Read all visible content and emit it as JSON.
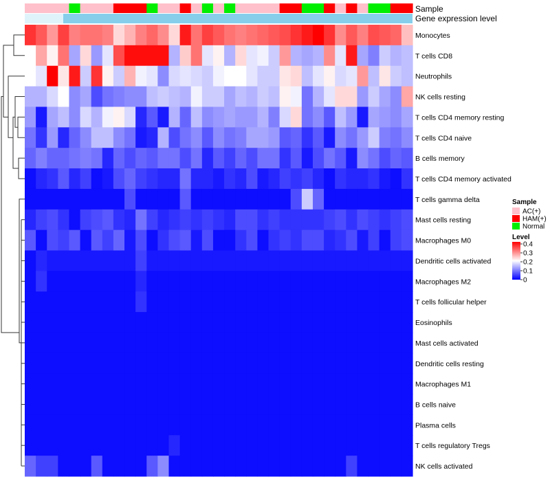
{
  "chart_data": {
    "type": "heatmap",
    "title": "",
    "rows": [
      "Monocytes",
      "T cells CD8",
      "Neutrophils",
      "NK cells resting",
      "T cells CD4 memory resting",
      "T cells CD4 naive",
      "B cells memory",
      "T cells CD4 memory activated",
      "T cells gamma delta",
      "Mast cells resting",
      "Macrophages M0",
      "Dendritic cells activated",
      "Macrophages M2",
      "T cells follicular helper",
      "Eosinophils",
      "Mast cells activated",
      "Dendritic cells resting",
      "Macrophages M1",
      "B cells naive",
      "Plasma cells",
      "T cells regulatory  Tregs",
      "NK cells activated"
    ],
    "sample_groups": [
      "AC",
      "AC",
      "AC",
      "AC",
      "N",
      "AC",
      "AC",
      "AC",
      "HAM",
      "HAM",
      "HAM",
      "N",
      "AC",
      "AC",
      "HAM",
      "AC",
      "N",
      "AC",
      "N",
      "AC",
      "AC",
      "AC",
      "AC",
      "HAM",
      "HAM",
      "N",
      "N",
      "HAM",
      "AC",
      "HAM",
      "AC",
      "N",
      "N",
      "HAM",
      "HAM"
    ],
    "gene_expression_track": "Gene expression level",
    "values": [
      [
        0.36,
        0.33,
        0.28,
        0.35,
        0.3,
        0.31,
        0.31,
        0.3,
        0.23,
        0.26,
        0.3,
        0.32,
        0.29,
        0.23,
        0.38,
        0.31,
        0.35,
        0.33,
        0.31,
        0.3,
        0.31,
        0.32,
        0.33,
        0.34,
        0.36,
        0.38,
        0.41,
        0.36,
        0.29,
        0.33,
        0.3,
        0.34,
        0.33,
        0.32,
        0.25
      ],
      [
        0.2,
        0.27,
        0.21,
        0.31,
        0.13,
        0.23,
        0.12,
        0.18,
        0.34,
        0.39,
        0.39,
        0.39,
        0.39,
        0.14,
        0.24,
        0.31,
        0.18,
        0.21,
        0.14,
        0.23,
        0.18,
        0.19,
        0.16,
        0.28,
        0.14,
        0.13,
        0.14,
        0.29,
        0.18,
        0.38,
        0.13,
        0.1,
        0.16,
        0.14,
        0.15
      ],
      [
        0.2,
        0.18,
        0.4,
        0.22,
        0.38,
        0.16,
        0.36,
        0.21,
        0.16,
        0.26,
        0.19,
        0.18,
        0.11,
        0.17,
        0.18,
        0.17,
        0.16,
        0.19,
        0.2,
        0.2,
        0.18,
        0.16,
        0.16,
        0.22,
        0.23,
        0.15,
        0.18,
        0.21,
        0.17,
        0.18,
        0.28,
        0.15,
        0.22,
        0.16,
        0.15
      ],
      [
        0.14,
        0.14,
        0.17,
        0.2,
        0.11,
        0.13,
        0.06,
        0.09,
        0.1,
        0.11,
        0.11,
        0.15,
        0.16,
        0.15,
        0.14,
        0.19,
        0.16,
        0.16,
        0.13,
        0.15,
        0.14,
        0.16,
        0.15,
        0.21,
        0.19,
        0.09,
        0.14,
        0.18,
        0.23,
        0.23,
        0.12,
        0.16,
        0.13,
        0.11,
        0.27
      ],
      [
        0.12,
        0.02,
        0.13,
        0.15,
        0.11,
        0.17,
        0.14,
        0.19,
        0.21,
        0.17,
        0.03,
        0.07,
        0.02,
        0.14,
        0.08,
        0.15,
        0.11,
        0.12,
        0.13,
        0.12,
        0.12,
        0.14,
        0.1,
        0.17,
        0.23,
        0.09,
        0.11,
        0.07,
        0.15,
        0.12,
        0.02,
        0.13,
        0.12,
        0.11,
        0.13
      ],
      [
        0.09,
        0.04,
        0.12,
        0.03,
        0.08,
        0.11,
        0.15,
        0.15,
        0.11,
        0.09,
        0.02,
        0.03,
        0.14,
        0.06,
        0.09,
        0.11,
        0.07,
        0.11,
        0.09,
        0.1,
        0.13,
        0.13,
        0.12,
        0.07,
        0.08,
        0.04,
        0.07,
        0.02,
        0.11,
        0.09,
        0.12,
        0.16,
        0.1,
        0.09,
        0.11
      ],
      [
        0.08,
        0.1,
        0.08,
        0.08,
        0.09,
        0.1,
        0.09,
        0.03,
        0.08,
        0.06,
        0.08,
        0.07,
        0.09,
        0.09,
        0.06,
        0.09,
        0.03,
        0.07,
        0.05,
        0.08,
        0.06,
        0.09,
        0.09,
        0.04,
        0.07,
        0.02,
        0.06,
        0.09,
        0.07,
        0.02,
        0.11,
        0.09,
        0.06,
        0.08,
        0.07
      ],
      [
        0.01,
        0.03,
        0.04,
        0.07,
        0.03,
        0.05,
        0.01,
        0.02,
        0.06,
        0.08,
        0.05,
        0.04,
        0.03,
        0.03,
        0.09,
        0.03,
        0.03,
        0.02,
        0.04,
        0.03,
        0.06,
        0.02,
        0.03,
        0.05,
        0.04,
        0.05,
        0.03,
        0.01,
        0.04,
        0.03,
        0.03,
        0.04,
        0.02,
        0.01,
        0.04
      ],
      [
        0.01,
        0.01,
        0.01,
        0.01,
        0.01,
        0.01,
        0.01,
        0.01,
        0.01,
        0.06,
        0.01,
        0.01,
        0.01,
        0.01,
        0.07,
        0.01,
        0.01,
        0.01,
        0.01,
        0.01,
        0.01,
        0.01,
        0.01,
        0.01,
        0.06,
        0.16,
        0.08,
        0.01,
        0.01,
        0.01,
        0.01,
        0.01,
        0.01,
        0.01,
        0.01
      ],
      [
        0.03,
        0.05,
        0.06,
        0.04,
        0.01,
        0.05,
        0.06,
        0.07,
        0.04,
        0.03,
        0.09,
        0.05,
        0.03,
        0.04,
        0.05,
        0.04,
        0.05,
        0.04,
        0.03,
        0.06,
        0.06,
        0.04,
        0.05,
        0.04,
        0.04,
        0.04,
        0.04,
        0.05,
        0.06,
        0.04,
        0.06,
        0.05,
        0.04,
        0.05,
        0.06
      ],
      [
        0.07,
        0.01,
        0.06,
        0.05,
        0.07,
        0.01,
        0.07,
        0.05,
        0.08,
        0.02,
        0.06,
        0.01,
        0.04,
        0.06,
        0.07,
        0.02,
        0.06,
        0.01,
        0.01,
        0.04,
        0.06,
        0.01,
        0.04,
        0.05,
        0.04,
        0.06,
        0.06,
        0.03,
        0.04,
        0.06,
        0.02,
        0.05,
        0.01,
        0.05,
        0.06
      ],
      [
        0.01,
        0.03,
        0.02,
        0.02,
        0.02,
        0.02,
        0.02,
        0.02,
        0.02,
        0.02,
        0.05,
        0.02,
        0.02,
        0.02,
        0.02,
        0.02,
        0.02,
        0.02,
        0.02,
        0.02,
        0.02,
        0.02,
        0.02,
        0.02,
        0.02,
        0.02,
        0.02,
        0.02,
        0.02,
        0.02,
        0.02,
        0.02,
        0.02,
        0.02,
        0.02
      ],
      [
        0.01,
        0.04,
        0.01,
        0.01,
        0.01,
        0.01,
        0.01,
        0.01,
        0.01,
        0.01,
        0.03,
        0.01,
        0.01,
        0.01,
        0.01,
        0.01,
        0.01,
        0.01,
        0.01,
        0.01,
        0.01,
        0.01,
        0.01,
        0.01,
        0.01,
        0.01,
        0.01,
        0.01,
        0.01,
        0.01,
        0.01,
        0.01,
        0.01,
        0.01,
        0.01
      ],
      [
        0.01,
        0.01,
        0.01,
        0.01,
        0.01,
        0.01,
        0.01,
        0.01,
        0.01,
        0.01,
        0.04,
        0.01,
        0.01,
        0.01,
        0.01,
        0.01,
        0.01,
        0.01,
        0.01,
        0.01,
        0.01,
        0.01,
        0.01,
        0.01,
        0.01,
        0.01,
        0.01,
        0.01,
        0.01,
        0.01,
        0.01,
        0.01,
        0.01,
        0.01,
        0.01
      ],
      [
        0.01,
        0.01,
        0.01,
        0.01,
        0.01,
        0.01,
        0.01,
        0.01,
        0.01,
        0.01,
        0.01,
        0.01,
        0.01,
        0.01,
        0.01,
        0.01,
        0.01,
        0.01,
        0.01,
        0.01,
        0.01,
        0.01,
        0.01,
        0.01,
        0.01,
        0.01,
        0.01,
        0.01,
        0.01,
        0.01,
        0.01,
        0.01,
        0.01,
        0.01,
        0.01
      ],
      [
        0.01,
        0.01,
        0.01,
        0.01,
        0.01,
        0.01,
        0.01,
        0.01,
        0.01,
        0.01,
        0.01,
        0.01,
        0.01,
        0.01,
        0.01,
        0.01,
        0.01,
        0.01,
        0.01,
        0.01,
        0.01,
        0.01,
        0.01,
        0.01,
        0.01,
        0.01,
        0.01,
        0.01,
        0.01,
        0.01,
        0.01,
        0.01,
        0.01,
        0.01,
        0.01
      ],
      [
        0.01,
        0.01,
        0.01,
        0.01,
        0.01,
        0.01,
        0.01,
        0.01,
        0.01,
        0.01,
        0.01,
        0.01,
        0.01,
        0.01,
        0.01,
        0.01,
        0.01,
        0.01,
        0.01,
        0.01,
        0.01,
        0.01,
        0.01,
        0.01,
        0.01,
        0.01,
        0.01,
        0.01,
        0.01,
        0.01,
        0.01,
        0.01,
        0.01,
        0.01,
        0.01
      ],
      [
        0.01,
        0.01,
        0.01,
        0.01,
        0.01,
        0.01,
        0.01,
        0.01,
        0.01,
        0.01,
        0.01,
        0.01,
        0.01,
        0.01,
        0.01,
        0.01,
        0.01,
        0.01,
        0.01,
        0.01,
        0.01,
        0.01,
        0.01,
        0.01,
        0.01,
        0.01,
        0.01,
        0.01,
        0.01,
        0.01,
        0.01,
        0.01,
        0.01,
        0.01,
        0.01
      ],
      [
        0.01,
        0.01,
        0.01,
        0.01,
        0.01,
        0.01,
        0.01,
        0.01,
        0.01,
        0.01,
        0.01,
        0.01,
        0.01,
        0.01,
        0.01,
        0.01,
        0.01,
        0.01,
        0.01,
        0.01,
        0.01,
        0.01,
        0.01,
        0.01,
        0.01,
        0.01,
        0.01,
        0.01,
        0.01,
        0.01,
        0.01,
        0.01,
        0.01,
        0.01,
        0.01
      ],
      [
        0.01,
        0.01,
        0.01,
        0.01,
        0.01,
        0.01,
        0.01,
        0.01,
        0.01,
        0.01,
        0.01,
        0.01,
        0.01,
        0.01,
        0.01,
        0.01,
        0.01,
        0.01,
        0.01,
        0.01,
        0.01,
        0.01,
        0.01,
        0.01,
        0.01,
        0.01,
        0.01,
        0.01,
        0.01,
        0.01,
        0.01,
        0.01,
        0.01,
        0.01,
        0.01
      ],
      [
        0.01,
        0.01,
        0.01,
        0.01,
        0.01,
        0.01,
        0.01,
        0.01,
        0.01,
        0.01,
        0.01,
        0.01,
        0.01,
        0.03,
        0.01,
        0.01,
        0.01,
        0.01,
        0.01,
        0.01,
        0.01,
        0.01,
        0.01,
        0.01,
        0.01,
        0.01,
        0.01,
        0.01,
        0.01,
        0.01,
        0.01,
        0.01,
        0.01,
        0.01,
        0.01
      ],
      [
        0.08,
        0.05,
        0.05,
        0.01,
        0.01,
        0.01,
        0.07,
        0.01,
        0.01,
        0.01,
        0.01,
        0.07,
        0.11,
        0.01,
        0.01,
        0.01,
        0.01,
        0.01,
        0.01,
        0.01,
        0.01,
        0.01,
        0.01,
        0.01,
        0.01,
        0.01,
        0.01,
        0.01,
        0.01,
        0.05,
        0.01,
        0.01,
        0.01,
        0.01,
        0.01
      ]
    ],
    "sample_legend": {
      "title": "Sample",
      "entries": [
        {
          "key": "AC",
          "label": "AC(+)",
          "color": "#ffc0cb"
        },
        {
          "key": "HAM",
          "label": "HAM(+)",
          "color": "#ff0000"
        },
        {
          "key": "N",
          "label": "Normal",
          "color": "#00ee00"
        }
      ]
    },
    "level_legend": {
      "title": "Level",
      "ticks": [
        "0.4",
        "0.3",
        "0.2",
        "0.1",
        "0"
      ],
      "tick_values": [
        0.4,
        0.3,
        0.2,
        0.1,
        0
      ],
      "range": [
        0,
        0.4
      ],
      "colors": {
        "low": "#0000ff",
        "mid": "#ffffff",
        "high": "#ff0000"
      }
    },
    "annotation_labels": {
      "sample": "Sample",
      "expression": "Gene expression level"
    },
    "expression_track_color": "#87ceeb"
  }
}
